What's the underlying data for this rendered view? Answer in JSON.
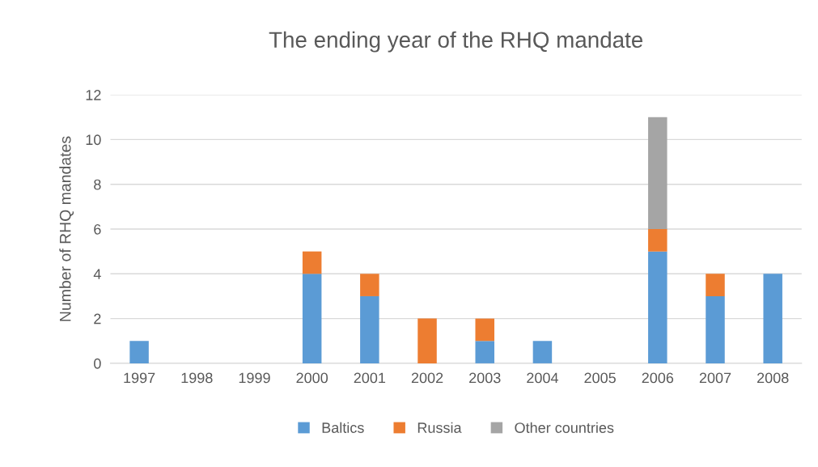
{
  "chart_data": {
    "type": "bar",
    "title": "The ending year of the RHQ mandate",
    "ylabel": "Number of RHQ mandates",
    "categories": [
      "1997",
      "1998",
      "1999",
      "2000",
      "2001",
      "2002",
      "2003",
      "2004",
      "2005",
      "2006",
      "2007",
      "2008"
    ],
    "stacked": true,
    "series": [
      {
        "name": "Baltics",
        "color": "#5b9bd5",
        "values": [
          1,
          0,
          0,
          4,
          3,
          0,
          1,
          1,
          0,
          5,
          3,
          4
        ]
      },
      {
        "name": "Russia",
        "color": "#ed7d31",
        "values": [
          0,
          0,
          0,
          1,
          1,
          2,
          1,
          0,
          0,
          1,
          1,
          0
        ]
      },
      {
        "name": "Other countries",
        "color": "#a5a5a5",
        "values": [
          0,
          0,
          0,
          0,
          0,
          0,
          0,
          0,
          0,
          5,
          0,
          0
        ]
      }
    ],
    "ylim": [
      0,
      12
    ],
    "yticks": [
      0,
      2,
      4,
      6,
      8,
      10,
      12
    ],
    "grid": "y",
    "legend": "bottom"
  }
}
